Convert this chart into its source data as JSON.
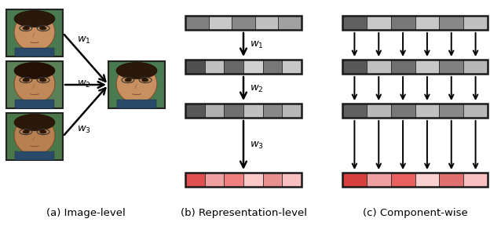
{
  "fig_width": 6.38,
  "fig_height": 2.88,
  "background": "#ffffff",
  "caption_a": "(a) Image-level",
  "caption_b": "(b) Representation-level",
  "caption_c": "(c) Component-wise",
  "caption_fontsize": 9.5,
  "face_colors_top": [
    "#c8956b",
    "#a87050",
    "#8a6040",
    "#b08060",
    "#d0a880"
  ],
  "face_colors_mid": [
    "#c89060",
    "#b07848",
    "#907050",
    "#c09070",
    "#d8b088"
  ],
  "face_colors_bot": [
    "#c08858",
    "#a87048",
    "#887050",
    "#b88868",
    "#d0a878"
  ],
  "face_result_colors": [
    "#c89060",
    "#b07848",
    "#907050",
    "#c09070",
    "#d8b088"
  ],
  "bar_row1_colors_b": [
    "#808080",
    "#c8c8c8",
    "#888888",
    "#c0c0c0",
    "#a0a0a0"
  ],
  "bar_row2_colors_b": [
    "#505050",
    "#c0c0c0",
    "#686868",
    "#d0d0d0",
    "#787878",
    "#c8c8c8"
  ],
  "bar_row3_colors_b": [
    "#585858",
    "#b0b0b0",
    "#707070",
    "#c0c0c0",
    "#888888",
    "#b8b8b8"
  ],
  "bar_row4_colors_b": [
    "#e05050",
    "#f0a0a0",
    "#f08080",
    "#fac8c8",
    "#e89090",
    "#f8c0c0"
  ],
  "bar_row1_colors_c": [
    "#606060",
    "#c8c8c8",
    "#787878",
    "#c8c8c8",
    "#888888",
    "#c0c0c0"
  ],
  "bar_row2_colors_c": [
    "#585858",
    "#c0c0c0",
    "#707070",
    "#c8c8c8",
    "#808080",
    "#b8b8b8"
  ],
  "bar_row3_colors_c": [
    "#606060",
    "#b8b8b8",
    "#787878",
    "#c0c0c0",
    "#888888",
    "#b8b8b8"
  ],
  "bar_row4_colors_c": [
    "#d84040",
    "#f0a0a0",
    "#e86060",
    "#fad0d0",
    "#e07070",
    "#f8c0c0"
  ],
  "border_color": "#1a1a1a",
  "border_linewidth": 1.8
}
